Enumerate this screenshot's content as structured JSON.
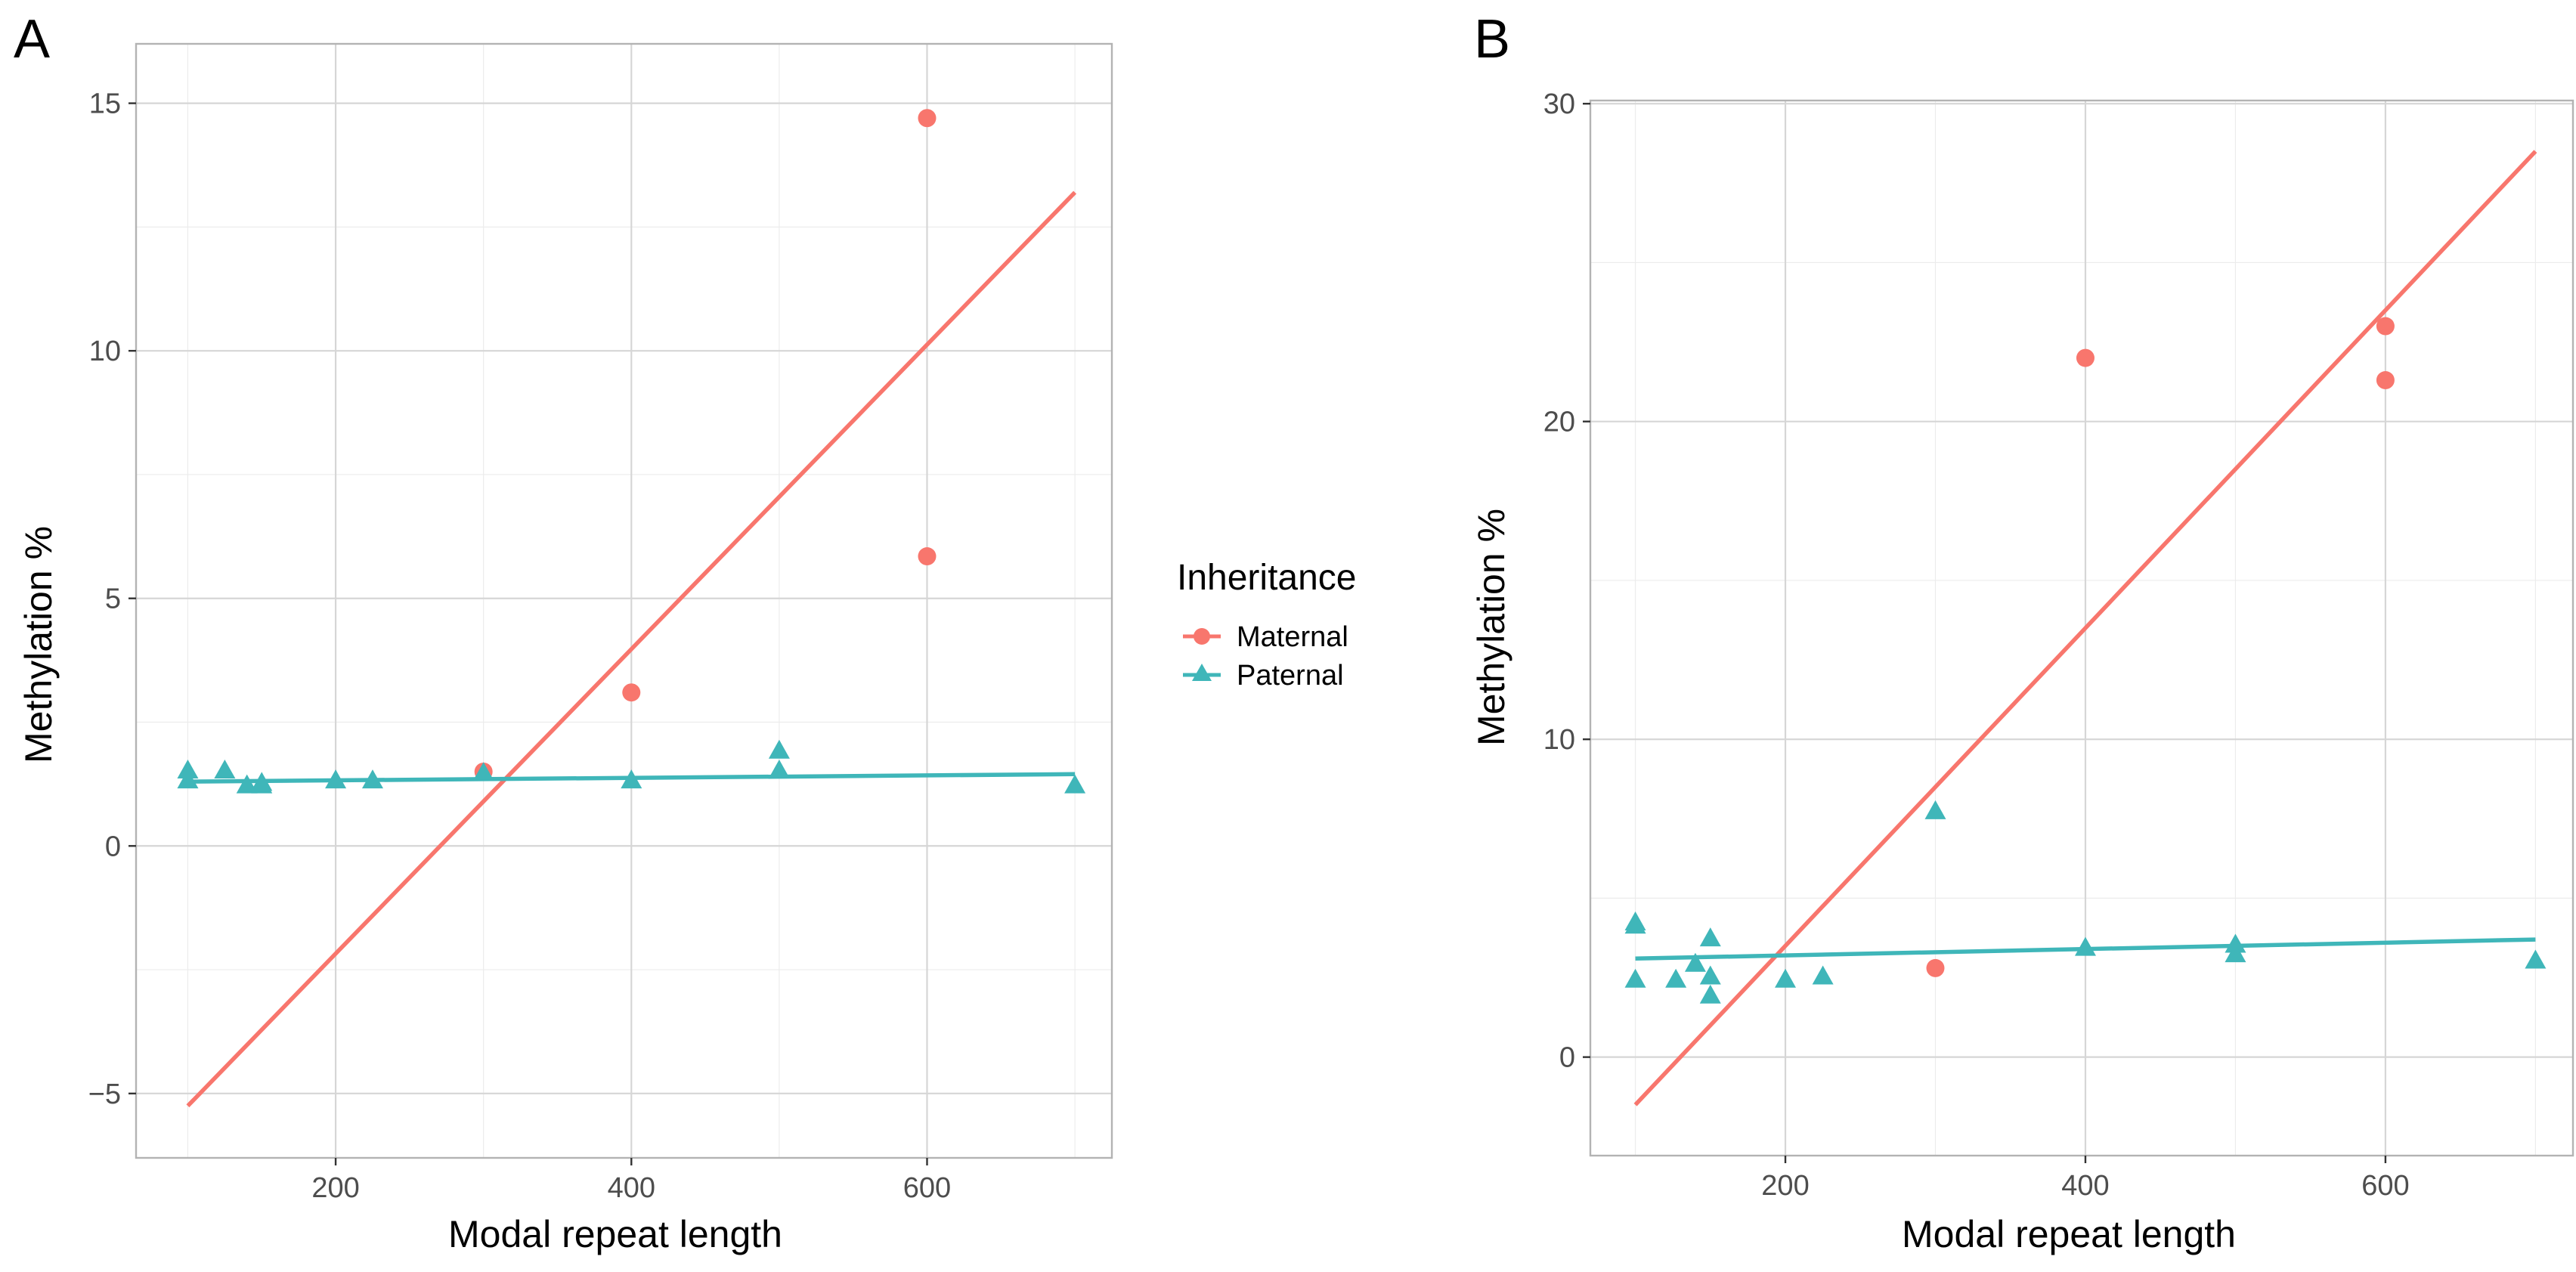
{
  "legend": {
    "title": "Inheritance",
    "entries": [
      {
        "label": "Maternal",
        "color": "#F8766D",
        "shape": "circle"
      },
      {
        "label": "Paternal",
        "color": "#3FB6B9",
        "shape": "triangle"
      }
    ]
  },
  "chart_data": [
    {
      "panel": "A",
      "type": "scatter",
      "xlabel": "Modal repeat length",
      "ylabel": "Methylation %",
      "xlim": [
        65,
        725
      ],
      "ylim": [
        -6.3,
        16.2
      ],
      "xticks": [
        200,
        400,
        600
      ],
      "yticks": [
        -5,
        0,
        5,
        10,
        15
      ],
      "xtick_labels": [
        "200",
        "400",
        "600"
      ],
      "ytick_labels": [
        "−5",
        "0",
        "5",
        "10",
        "15"
      ],
      "series": [
        {
          "name": "Maternal",
          "color": "#F8766D",
          "shape": "circle",
          "points": [
            [
              300,
              1.5
            ],
            [
              400,
              3.1
            ],
            [
              600,
              5.85
            ],
            [
              600,
              14.7
            ]
          ],
          "fit": [
            [
              100,
              -5.25
            ],
            [
              700,
              13.2
            ]
          ]
        },
        {
          "name": "Paternal",
          "color": "#3FB6B9",
          "shape": "triangle",
          "points": [
            [
              100,
              1.3
            ],
            [
              100,
              1.5
            ],
            [
              125,
              1.5
            ],
            [
              140,
              1.2
            ],
            [
              150,
              1.25
            ],
            [
              150,
              1.2
            ],
            [
              200,
              1.3
            ],
            [
              225,
              1.3
            ],
            [
              300,
              1.45
            ],
            [
              400,
              1.3
            ],
            [
              500,
              1.5
            ],
            [
              500,
              1.9
            ],
            [
              700,
              1.2
            ]
          ],
          "fit": [
            [
              100,
              1.3
            ],
            [
              700,
              1.45
            ]
          ]
        }
      ]
    },
    {
      "panel": "B",
      "type": "scatter",
      "xlabel": "Modal repeat length",
      "ylabel": "Methylation %",
      "xlim": [
        70,
        725
      ],
      "ylim": [
        -3.1,
        30.1
      ],
      "xticks": [
        200,
        400,
        600
      ],
      "yticks": [
        0,
        10,
        20,
        30
      ],
      "xtick_labels": [
        "200",
        "400",
        "600"
      ],
      "ytick_labels": [
        "0",
        "10",
        "20",
        "30"
      ],
      "series": [
        {
          "name": "Maternal",
          "color": "#F8766D",
          "shape": "circle",
          "points": [
            [
              300,
              2.8
            ],
            [
              400,
              22.0
            ],
            [
              600,
              21.3
            ],
            [
              600,
              23.0
            ]
          ],
          "fit": [
            [
              100,
              -1.5
            ],
            [
              700,
              28.5
            ]
          ]
        },
        {
          "name": "Paternal",
          "color": "#3FB6B9",
          "shape": "triangle",
          "points": [
            [
              100,
              4.1
            ],
            [
              100,
              4.2
            ],
            [
              100,
              2.4
            ],
            [
              127,
              2.4
            ],
            [
              140,
              2.9
            ],
            [
              150,
              3.7
            ],
            [
              150,
              2.5
            ],
            [
              150,
              1.9
            ],
            [
              200,
              2.4
            ],
            [
              225,
              2.5
            ],
            [
              300,
              7.7
            ],
            [
              400,
              3.4
            ],
            [
              500,
              3.2
            ],
            [
              500,
              3.5
            ],
            [
              700,
              3.0
            ]
          ],
          "fit": [
            [
              100,
              3.1
            ],
            [
              700,
              3.7
            ]
          ]
        }
      ]
    }
  ]
}
